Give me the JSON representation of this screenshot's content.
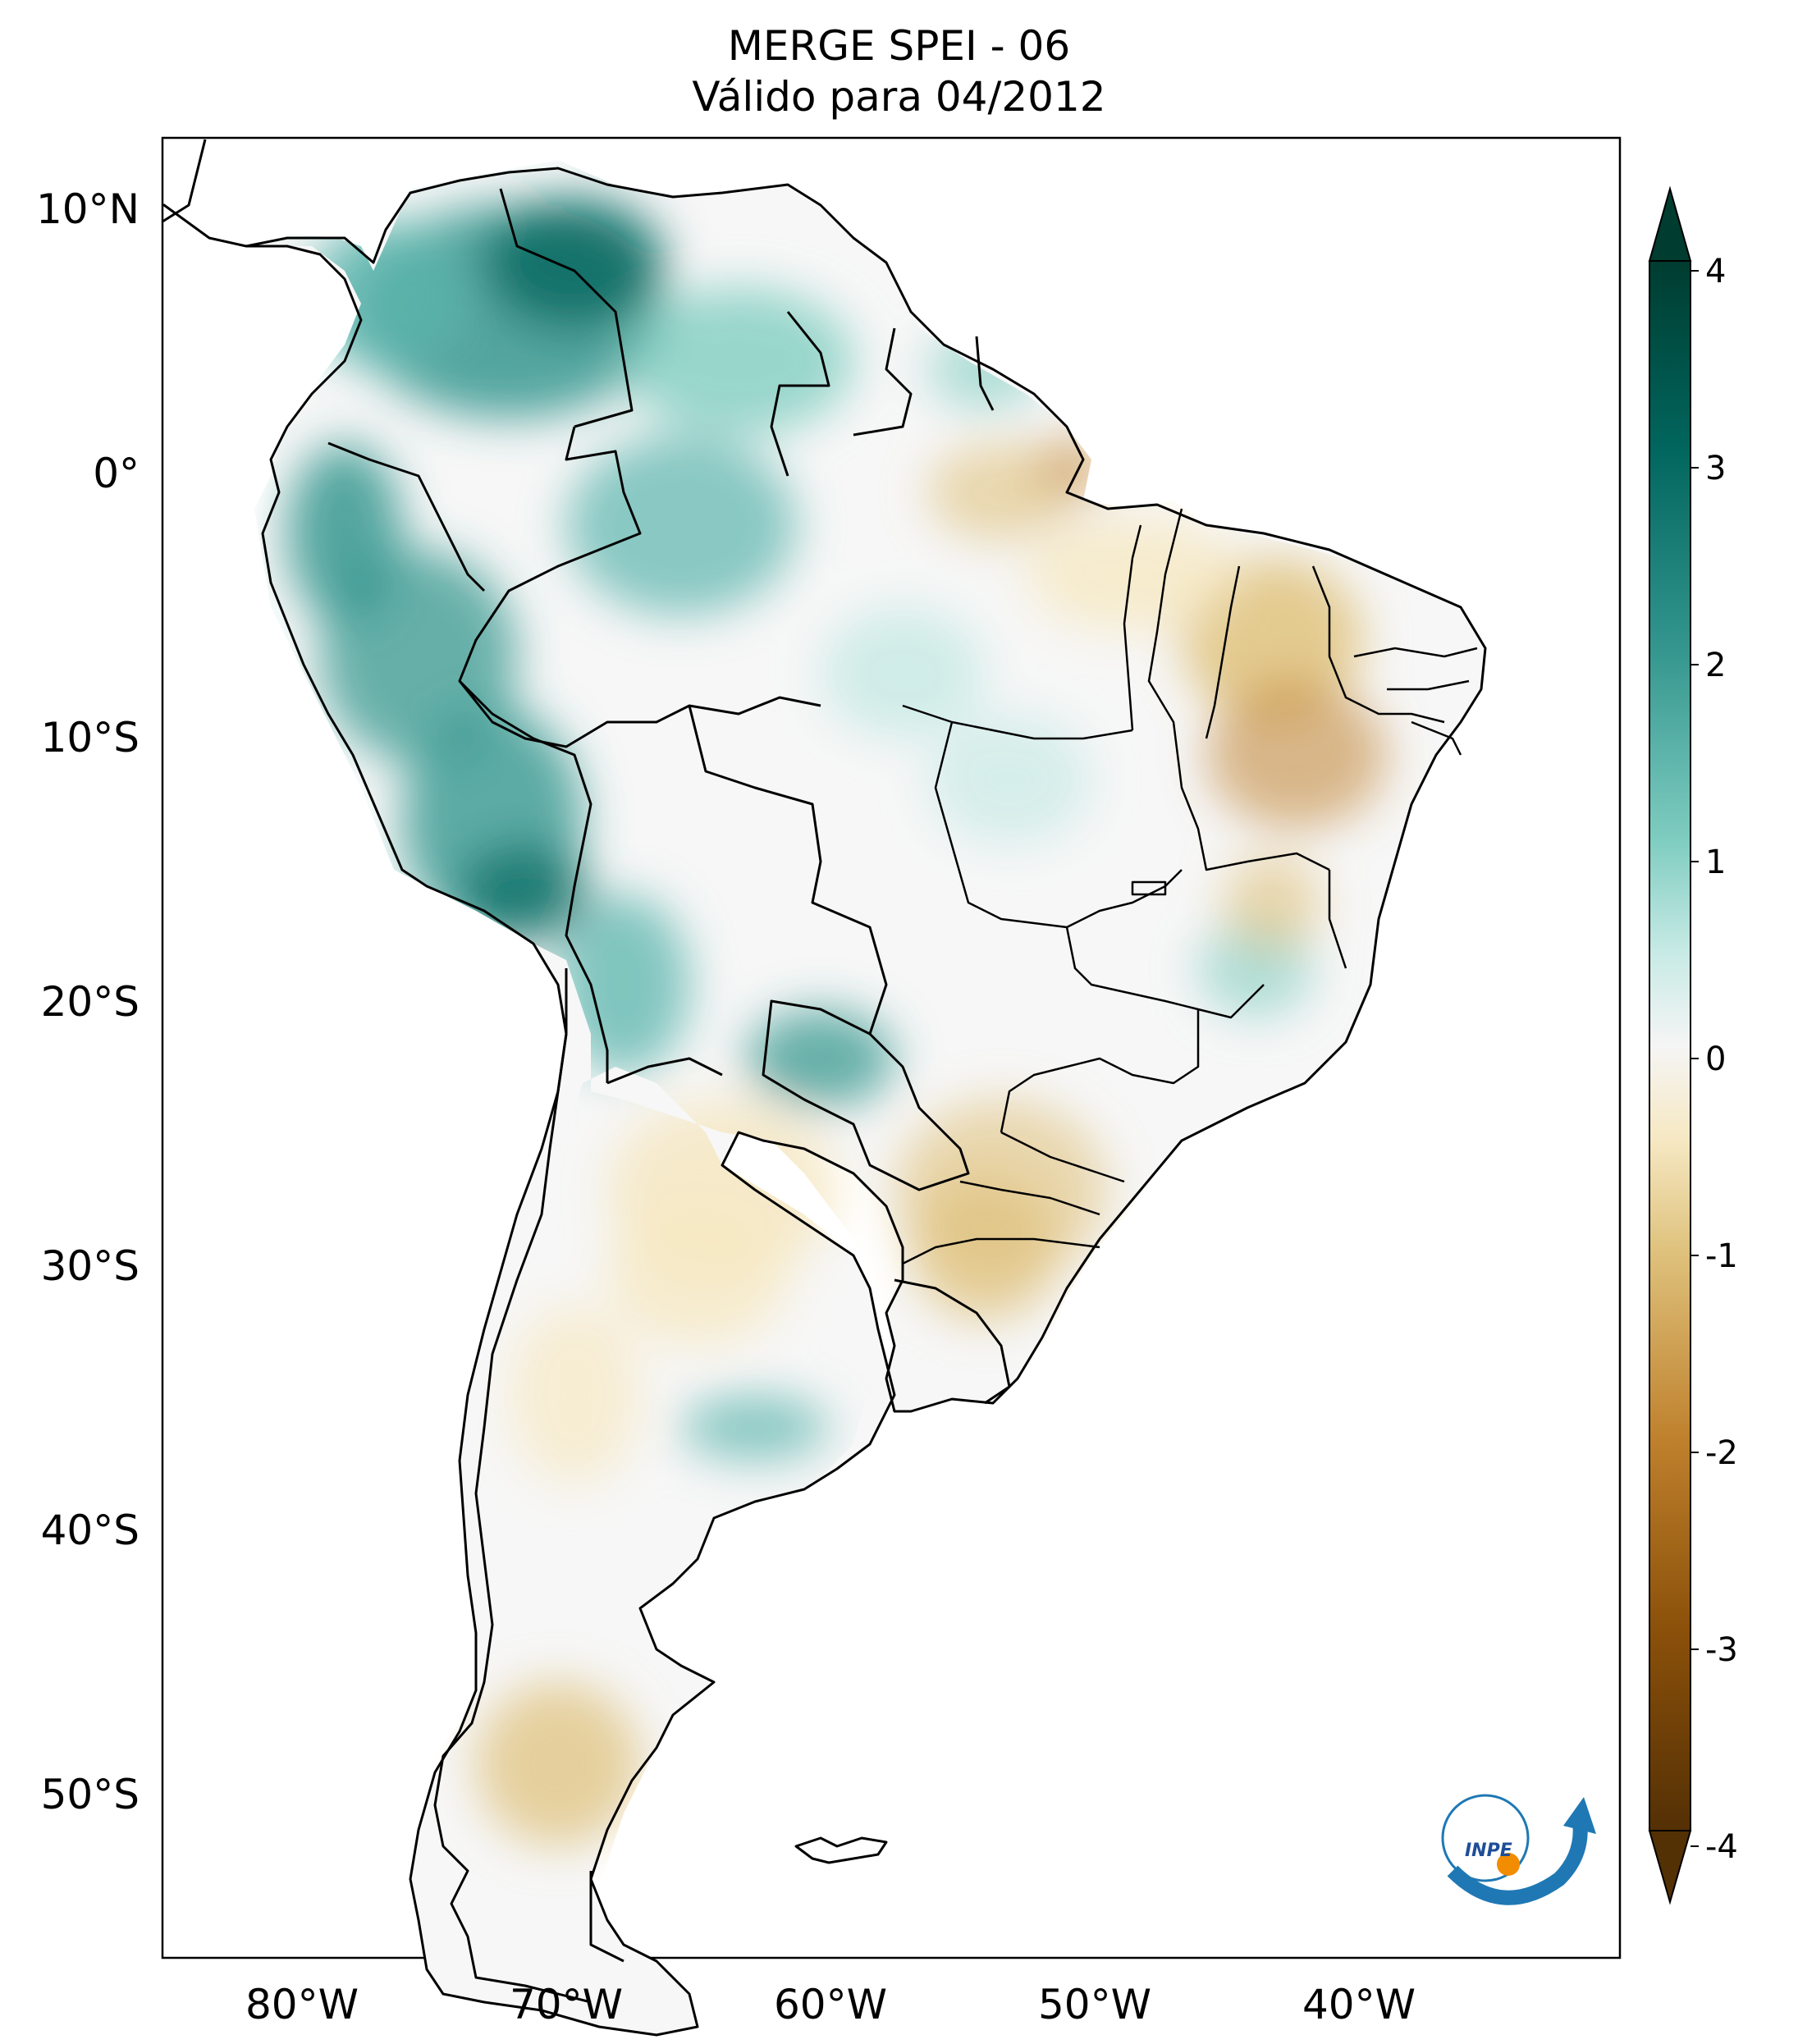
{
  "title": {
    "line1": "MERGE   SPEI - 06",
    "line2": "Válido para 04/2012"
  },
  "map": {
    "region": "South America",
    "lat_labels": [
      "10°N",
      "0°",
      "10°S",
      "20°S",
      "30°S",
      "40°S",
      "50°S"
    ],
    "lon_labels": [
      "80°W",
      "70°W",
      "60°W",
      "50°W",
      "40°W"
    ],
    "logo_text": "INPE"
  },
  "colorbar": {
    "ticks": [
      "4",
      "3",
      "2",
      "1",
      "0",
      "-1",
      "-2",
      "-3",
      "-4"
    ],
    "range": [
      -4,
      4
    ],
    "colors": {
      "wet_max": "#003c30",
      "wet_high": "#01665e",
      "wet_mid": "#35978f",
      "wet_low": "#80cdc1",
      "wet_light": "#c7eae5",
      "neutral": "#f5f5f5",
      "dry_light": "#f6e8c3",
      "dry_low": "#dfc27d",
      "dry_mid": "#bf812d",
      "dry_high": "#8c510a",
      "dry_max": "#543005"
    }
  }
}
